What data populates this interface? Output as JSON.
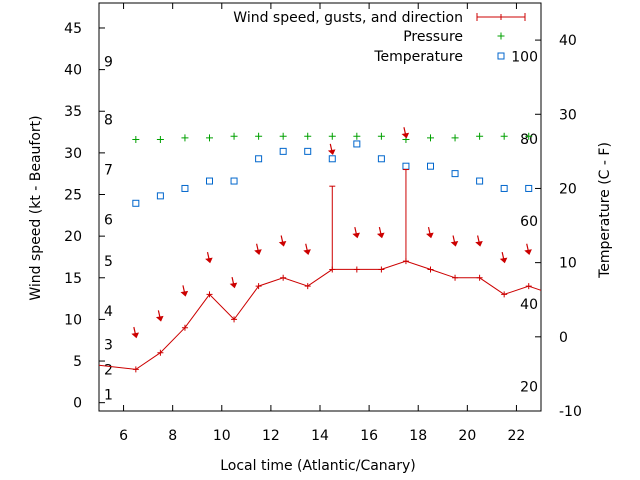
{
  "chart_data": {
    "type": "line",
    "xlabel": "Local time (Atlantic/Canary)",
    "ylabel_left": "Wind speed (kt - Beaufort)",
    "ylabel_right": "Temperature (C - F)",
    "x_ticks": [
      "6",
      "8",
      "10",
      "12",
      "14",
      "16",
      "18",
      "20",
      "22"
    ],
    "x_tick_values": [
      6,
      8,
      10,
      12,
      14,
      16,
      18,
      20,
      22
    ],
    "xlim": [
      5,
      23
    ],
    "y_left_ticks": [
      "0",
      "5",
      "10",
      "15",
      "20",
      "25",
      "30",
      "35",
      "40",
      "45"
    ],
    "y_left_tick_values": [
      0,
      5,
      10,
      15,
      20,
      25,
      30,
      35,
      40,
      45
    ],
    "ylim_left": [
      -1,
      48
    ],
    "beaufort_labels": [
      {
        "label": "1",
        "kt": 1
      },
      {
        "label": "2",
        "kt": 4
      },
      {
        "label": "3",
        "kt": 7
      },
      {
        "label": "4",
        "kt": 11
      },
      {
        "label": "5",
        "kt": 17
      },
      {
        "label": "6",
        "kt": 22
      },
      {
        "label": "7",
        "kt": 28
      },
      {
        "label": "8",
        "kt": 34
      },
      {
        "label": "9",
        "kt": 41
      }
    ],
    "y_right_ticks": [
      "-10",
      "0",
      "10",
      "20",
      "30",
      "40"
    ],
    "y_right_tick_values": [
      -10,
      0,
      10,
      20,
      30,
      40
    ],
    "ylim_right": [
      -10,
      45
    ],
    "fahrenheit_labels": [
      {
        "label": "20",
        "c": -6.7
      },
      {
        "label": "40",
        "c": 4.4
      },
      {
        "label": "60",
        "c": 15.6
      },
      {
        "label": "80",
        "c": 26.7
      },
      {
        "label": "100",
        "c": 37.8
      }
    ],
    "legend_position": "top-right",
    "series": [
      {
        "name": "Wind speed, gusts, and direction",
        "color": "#cc0000",
        "x": [
          5.0,
          6.5,
          7.5,
          8.5,
          9.5,
          10.5,
          11.5,
          12.5,
          13.5,
          14.5,
          15.5,
          16.5,
          17.5,
          18.5,
          19.5,
          20.5,
          21.5,
          22.5,
          23.0
        ],
        "values": [
          4.5,
          4,
          6,
          9,
          13,
          10,
          14,
          15,
          14,
          16,
          16,
          16,
          17,
          16,
          15,
          15,
          13,
          14,
          13.5
        ],
        "gusts": [
          {
            "x": 14.5,
            "value": 26
          },
          {
            "x": 17.5,
            "value": 28
          }
        ],
        "direction_arrows_x": [
          6.5,
          7.5,
          8.5,
          9.5,
          10.5,
          11.5,
          12.5,
          13.5,
          14.5,
          15.5,
          16.5,
          17.5,
          18.5,
          19.5,
          20.5,
          21.5,
          22.5
        ],
        "direction_arrows_y": [
          8,
          10,
          13,
          17,
          14,
          18,
          19,
          18,
          30,
          20,
          20,
          32,
          20,
          19,
          19,
          17,
          18
        ]
      },
      {
        "name": "Pressure",
        "color": "#00a000",
        "x": [
          6.5,
          7.5,
          8.5,
          9.5,
          10.5,
          11.5,
          12.5,
          13.5,
          14.5,
          15.5,
          16.5,
          17.5,
          18.5,
          19.5,
          20.5,
          21.5,
          22.5
        ],
        "values": [
          31.6,
          31.6,
          31.8,
          31.8,
          32,
          32,
          32,
          32,
          32,
          32,
          32,
          31.6,
          31.8,
          31.8,
          32,
          32,
          32
        ]
      },
      {
        "name": "Temperature",
        "color": "#0066cc",
        "x": [
          6.5,
          7.5,
          8.5,
          9.5,
          10.5,
          11.5,
          12.5,
          13.5,
          14.5,
          15.5,
          16.5,
          17.5,
          18.5,
          19.5,
          20.5,
          21.5,
          22.5
        ],
        "values": [
          18,
          19,
          20,
          21,
          21,
          24,
          25,
          25,
          24,
          26,
          24,
          23,
          23,
          22,
          21,
          20,
          20
        ]
      }
    ]
  }
}
